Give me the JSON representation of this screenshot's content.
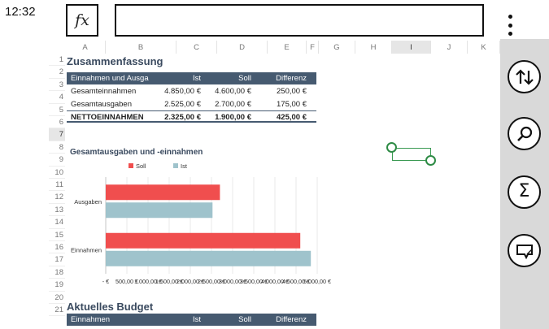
{
  "status": {
    "time": "12:32"
  },
  "formula_bar": {
    "fx_label": "fx",
    "value": ""
  },
  "right_bar": {
    "buttons": [
      "sort-icon",
      "search-icon",
      "sigma-icon",
      "comment-icon"
    ],
    "sigma_glyph": "Σ"
  },
  "columns": [
    "A",
    "B",
    "C",
    "D",
    "E",
    "F",
    "G",
    "H",
    "I",
    "J",
    "K"
  ],
  "selected_column": "I",
  "rows": [
    "1",
    "2",
    "3",
    "4",
    "5",
    "6",
    "7",
    "8",
    "9",
    "10",
    "11",
    "12",
    "13",
    "14",
    "15",
    "16",
    "17",
    "18",
    "19",
    "20",
    "21"
  ],
  "selected_row": "7",
  "summary": {
    "title": "Zusammenfassung",
    "headers": [
      "Einnahmen und Ausga",
      "Ist",
      "Soll",
      "Differenz"
    ],
    "rows": [
      [
        "Gesamteinnahmen",
        "4.850,00 €",
        "4.600,00 €",
        "250,00 €"
      ],
      [
        "Gesamtausgaben",
        "2.525,00 €",
        "2.700,00 €",
        "175,00 €"
      ]
    ],
    "total": [
      "NETTOEINNAHMEN",
      "2.325,00 €",
      "1.900,00 €",
      "425,00 €"
    ]
  },
  "chart_data": {
    "type": "bar",
    "orientation": "horizontal",
    "title": "Gesamtausgaben und -einnahmen",
    "categories": [
      "Ausgaben",
      "Einnahmen"
    ],
    "series": [
      {
        "name": "Soll",
        "values": [
          2700,
          4600
        ],
        "color": "#f04e4e"
      },
      {
        "name": "Ist",
        "values": [
          2525,
          4850
        ],
        "color": "#9fc3cc"
      }
    ],
    "xlim": [
      0,
      5000
    ],
    "x_tick_labels": [
      "-  €",
      "500,00 €",
      "1.000,00 €",
      "1.500,00 €",
      "2.000,00 €",
      "2.500,00 €",
      "3.000,00 €",
      "3.500,00 €",
      "4.000,00 €",
      "4.500,00 €",
      "5.000,00 €"
    ],
    "legend_position": "top",
    "grid": true
  },
  "budget": {
    "title": "Aktuelles Budget",
    "headers": [
      "Einnahmen",
      "Ist",
      "Soll",
      "Differenz"
    ]
  }
}
